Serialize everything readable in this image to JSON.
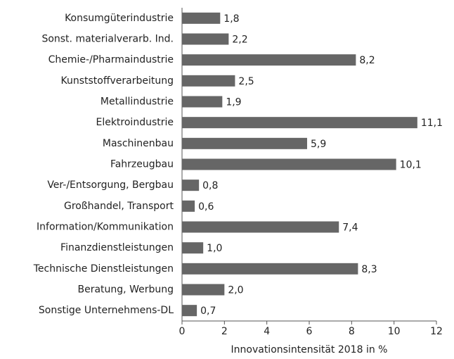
{
  "chart_data": {
    "type": "barh",
    "xlabel": "Innovationsintensität 2018 in %",
    "categories": [
      "Konsumgüterindustrie",
      "Sonst. materialverarb. Ind.",
      "Chemie-/Pharmaindustrie",
      "Kunststoffverarbeitung",
      "Metallindustrie",
      "Elektroindustrie",
      "Maschinenbau",
      "Fahrzeugbau",
      "Ver-/Entsorgung, Bergbau",
      "Großhandel, Transport",
      "Information/Kommunikation",
      "Finanzdienstleistungen",
      "Technische Dienstleistungen",
      "Beratung, Werbung",
      "Sonstige Unternehmens-DL"
    ],
    "values": [
      1.8,
      2.2,
      8.2,
      2.5,
      1.9,
      11.1,
      5.9,
      10.1,
      0.8,
      0.6,
      7.4,
      1.0,
      8.3,
      2.0,
      0.7
    ],
    "value_labels": [
      "1,8",
      "2,2",
      "8,2",
      "2,5",
      "1,9",
      "11,1",
      "5,9",
      "10,1",
      "0,8",
      "0,6",
      "7,4",
      "1,0",
      "8,3",
      "2,0",
      "0,7"
    ],
    "color": "#666666",
    "xlim": [
      0,
      12
    ],
    "xticks": [
      0,
      2,
      4,
      6,
      8,
      10,
      12
    ],
    "grid": false
  }
}
